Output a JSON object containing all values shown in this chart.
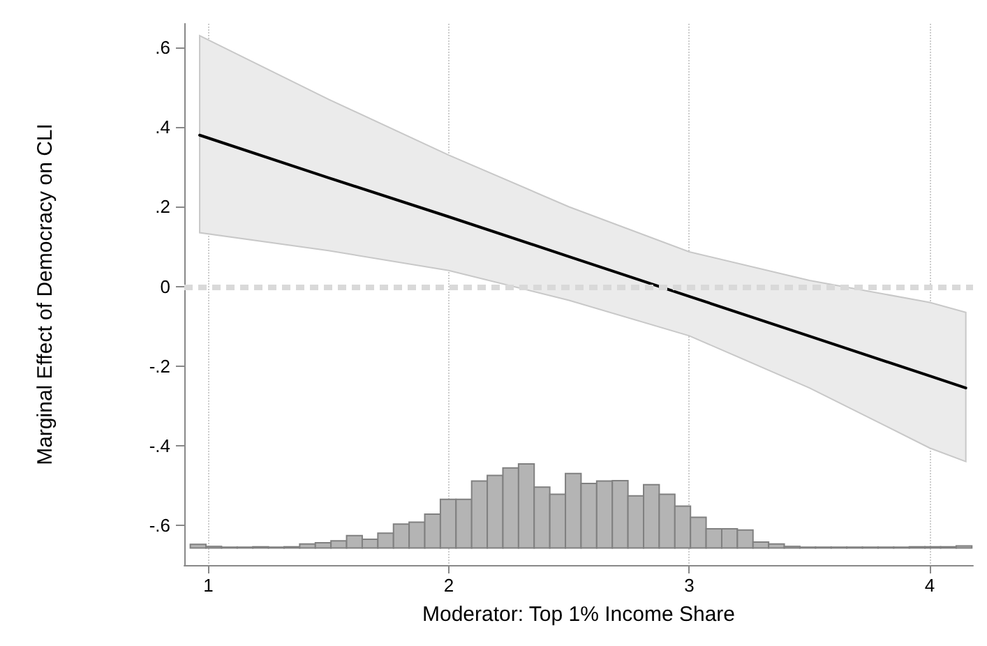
{
  "chart_data": {
    "type": "line",
    "xlabel": "Moderator: Top 1% Income Share",
    "ylabel": "Marginal Effect of Democracy on CLI",
    "xlim": [
      0.9,
      4.18
    ],
    "xticks": [
      1,
      2,
      3,
      4
    ],
    "ylim": [
      -0.7,
      0.66
    ],
    "yticks": [
      {
        "value": 0.6,
        "label": ".6"
      },
      {
        "value": 0.4,
        "label": ".4"
      },
      {
        "value": 0.2,
        "label": ".2"
      },
      0,
      {
        "value": -0.2,
        "label": "-.2"
      },
      {
        "value": -0.4,
        "label": "-.4"
      },
      {
        "value": -0.6,
        "label": "-.6"
      }
    ],
    "grid": "x",
    "marker": "none",
    "line_style": "solid",
    "ref_lines": [
      {
        "axis": "y",
        "value": 0,
        "color": "#d9d9d9",
        "line_style": "dashed"
      }
    ],
    "series": [
      {
        "color": "#000000",
        "x": [
          0.964,
          1.5,
          2,
          2.5,
          3,
          3.5,
          4,
          4.15
        ],
        "values": [
          0.38,
          0.273,
          0.175,
          0.075,
          -0.025,
          -0.125,
          -0.225,
          -0.255
        ],
        "lower": [
          0.135,
          0.09,
          0.04,
          -0.035,
          -0.124,
          -0.255,
          -0.406,
          -0.44
        ],
        "upper": [
          0.63,
          0.47,
          0.33,
          0.2,
          0.087,
          0.015,
          -0.04,
          -0.065
        ]
      },
      {
        "type": "histogram",
        "color": "#b4b4b4",
        "bins": [
          0.925,
          0.99,
          1.055,
          1.12,
          1.185,
          1.25,
          1.315,
          1.38,
          1.445,
          1.51,
          1.575,
          1.64,
          1.705,
          1.77,
          1.835,
          1.9,
          1.965,
          2.03,
          2.095,
          2.16,
          2.225,
          2.29,
          2.355,
          2.42,
          2.485,
          2.55,
          2.615,
          2.68,
          2.745,
          2.81,
          2.875,
          2.94,
          3.005,
          3.07,
          3.135,
          3.2,
          3.265,
          3.33,
          3.395,
          3.46,
          3.525,
          3.59,
          3.655,
          3.72,
          3.785,
          3.85,
          3.915,
          3.98,
          4.045,
          4.11,
          4.175
        ],
        "values": [
          0.009,
          0.004,
          0.002,
          0.002,
          0.003,
          0.002,
          0.003,
          0.01,
          0.013,
          0.018,
          0.031,
          0.022,
          0.037,
          0.06,
          0.065,
          0.085,
          0.122,
          0.122,
          0.168,
          0.182,
          0.201,
          0.211,
          0.153,
          0.135,
          0.187,
          0.162,
          0.168,
          0.169,
          0.131,
          0.159,
          0.135,
          0.105,
          0.077,
          0.048,
          0.048,
          0.045,
          0.015,
          0.01,
          0.004,
          0.002,
          0.002,
          0.002,
          0.002,
          0.002,
          0.002,
          0.002,
          0.003,
          0.003,
          0.003,
          0.005
        ],
        "base": [
          -0.657,
          -0.657,
          -0.657,
          -0.657,
          -0.657,
          -0.657,
          -0.657,
          -0.657,
          -0.657,
          -0.657,
          -0.657,
          -0.657,
          -0.657,
          -0.657,
          -0.657,
          -0.657,
          -0.657,
          -0.657,
          -0.657,
          -0.657,
          -0.657,
          -0.657,
          -0.657,
          -0.657,
          -0.657,
          -0.657,
          -0.657,
          -0.657,
          -0.657,
          -0.657,
          -0.657,
          -0.657,
          -0.657,
          -0.657,
          -0.657,
          -0.657,
          -0.657,
          -0.657,
          -0.657,
          -0.657,
          -0.657,
          -0.657,
          -0.657,
          -0.657,
          -0.657,
          -0.657,
          -0.657,
          -0.657,
          -0.657,
          -0.657
        ]
      }
    ]
  }
}
